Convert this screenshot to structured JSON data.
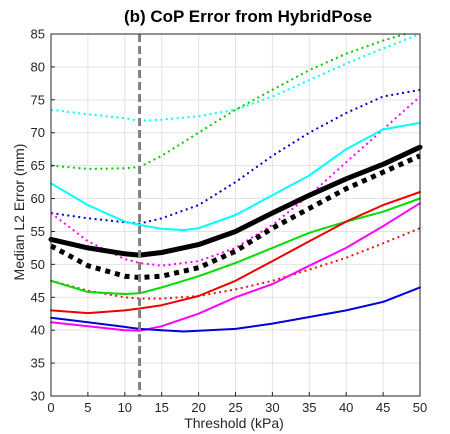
{
  "chart_data": {
    "type": "line",
    "title": "(b) CoP Error from HybridPose",
    "xlabel": "Threshold (kPa)",
    "ylabel": "Median L2 Error (mm)",
    "xlim": [
      0,
      50
    ],
    "ylim": [
      30,
      85
    ],
    "xticks": [
      0,
      5,
      10,
      15,
      20,
      25,
      30,
      35,
      40,
      45,
      50
    ],
    "yticks": [
      30,
      35,
      40,
      45,
      50,
      55,
      60,
      65,
      70,
      75,
      80,
      85
    ],
    "grid": true,
    "vertical_marker": {
      "x": 12,
      "color": "#808080",
      "style": "dashed"
    },
    "series": [
      {
        "color": "#00ffff",
        "style": "dotted",
        "width": 2,
        "x": [
          0,
          5,
          10,
          12,
          15,
          20,
          25,
          30,
          35,
          40,
          45,
          50
        ],
        "y": [
          73.5,
          72.8,
          72.2,
          71.8,
          72.0,
          72.5,
          73.5,
          75.5,
          78.0,
          80.5,
          82.8,
          85.0
        ]
      },
      {
        "color": "#00cc00",
        "style": "dotted",
        "width": 2,
        "x": [
          0,
          5,
          10,
          12,
          15,
          20,
          25,
          30,
          35,
          40,
          45,
          48
        ],
        "y": [
          65.0,
          64.5,
          64.6,
          64.8,
          66.5,
          70.0,
          73.5,
          76.5,
          79.5,
          82.0,
          84.0,
          85.0
        ]
      },
      {
        "color": "#0000cc",
        "style": "dotted",
        "width": 2,
        "x": [
          0,
          5,
          10,
          12,
          15,
          20,
          25,
          30,
          35,
          40,
          45,
          50
        ],
        "y": [
          57.8,
          57.0,
          56.4,
          56.2,
          57.0,
          59.0,
          62.5,
          66.5,
          70.0,
          73.0,
          75.5,
          76.5
        ]
      },
      {
        "color": "#ff00ff",
        "style": "dotted",
        "width": 2,
        "x": [
          0,
          5,
          10,
          12,
          15,
          20,
          25,
          30,
          35,
          40,
          45,
          50
        ],
        "y": [
          57.8,
          53.5,
          50.8,
          50.2,
          49.8,
          50.5,
          52.5,
          56.0,
          60.5,
          65.5,
          70.5,
          75.5
        ]
      },
      {
        "color": "#ee1111",
        "style": "dotted",
        "width": 2,
        "x": [
          0,
          5,
          10,
          12,
          15,
          20,
          25,
          30,
          35,
          40,
          45,
          50
        ],
        "y": [
          47.5,
          46.0,
          45.0,
          44.8,
          44.8,
          45.2,
          46.2,
          47.5,
          49.2,
          51.0,
          53.2,
          55.5
        ]
      },
      {
        "color": "#000000",
        "style": "dotted",
        "width": 5,
        "x": [
          0,
          5,
          10,
          12,
          15,
          20,
          25,
          30,
          35,
          40,
          45,
          50
        ],
        "y": [
          52.8,
          49.8,
          48.2,
          48.0,
          48.2,
          49.5,
          52.0,
          55.5,
          58.5,
          61.5,
          64.0,
          66.5
        ]
      },
      {
        "color": "#00ffff",
        "style": "solid",
        "width": 2,
        "x": [
          0,
          2,
          5,
          8,
          10,
          12,
          15,
          18,
          20,
          25,
          30,
          35,
          40,
          45,
          50
        ],
        "y": [
          62.3,
          61.0,
          59.0,
          57.5,
          56.5,
          56.0,
          55.4,
          55.2,
          55.5,
          57.5,
          60.5,
          63.5,
          67.5,
          70.5,
          71.5
        ]
      },
      {
        "color": "#000000",
        "style": "solid",
        "width": 5,
        "x": [
          0,
          5,
          10,
          12,
          15,
          20,
          25,
          30,
          35,
          40,
          45,
          50
        ],
        "y": [
          53.8,
          52.5,
          51.6,
          51.4,
          51.8,
          53.0,
          55.0,
          57.8,
          60.5,
          63.0,
          65.2,
          67.8
        ]
      },
      {
        "color": "#00dd00",
        "style": "solid",
        "width": 2,
        "x": [
          0,
          5,
          10,
          12,
          15,
          20,
          25,
          30,
          35,
          40,
          45,
          50
        ],
        "y": [
          47.5,
          45.8,
          45.5,
          45.6,
          46.5,
          48.2,
          50.2,
          52.5,
          54.8,
          56.5,
          58.0,
          60.0
        ]
      },
      {
        "color": "#ee0000",
        "style": "solid",
        "width": 2,
        "x": [
          0,
          5,
          10,
          12,
          15,
          20,
          25,
          30,
          35,
          40,
          45,
          50
        ],
        "y": [
          43.0,
          42.6,
          43.0,
          43.3,
          43.8,
          45.2,
          47.5,
          50.5,
          53.5,
          56.5,
          59.0,
          61.0
        ]
      },
      {
        "color": "#ff00ff",
        "style": "solid",
        "width": 2,
        "x": [
          0,
          5,
          10,
          12,
          15,
          20,
          25,
          30,
          35,
          40,
          45,
          50
        ],
        "y": [
          41.2,
          40.6,
          40.0,
          39.9,
          40.6,
          42.5,
          45.0,
          47.0,
          49.8,
          52.5,
          55.8,
          59.3
        ]
      },
      {
        "color": "#0000dd",
        "style": "solid",
        "width": 2,
        "x": [
          0,
          5,
          10,
          12,
          15,
          18,
          20,
          25,
          30,
          35,
          40,
          45,
          50
        ],
        "y": [
          41.9,
          41.2,
          40.5,
          40.2,
          40.0,
          39.8,
          39.9,
          40.2,
          41.0,
          42.0,
          43.0,
          44.3,
          46.5
        ]
      }
    ]
  }
}
